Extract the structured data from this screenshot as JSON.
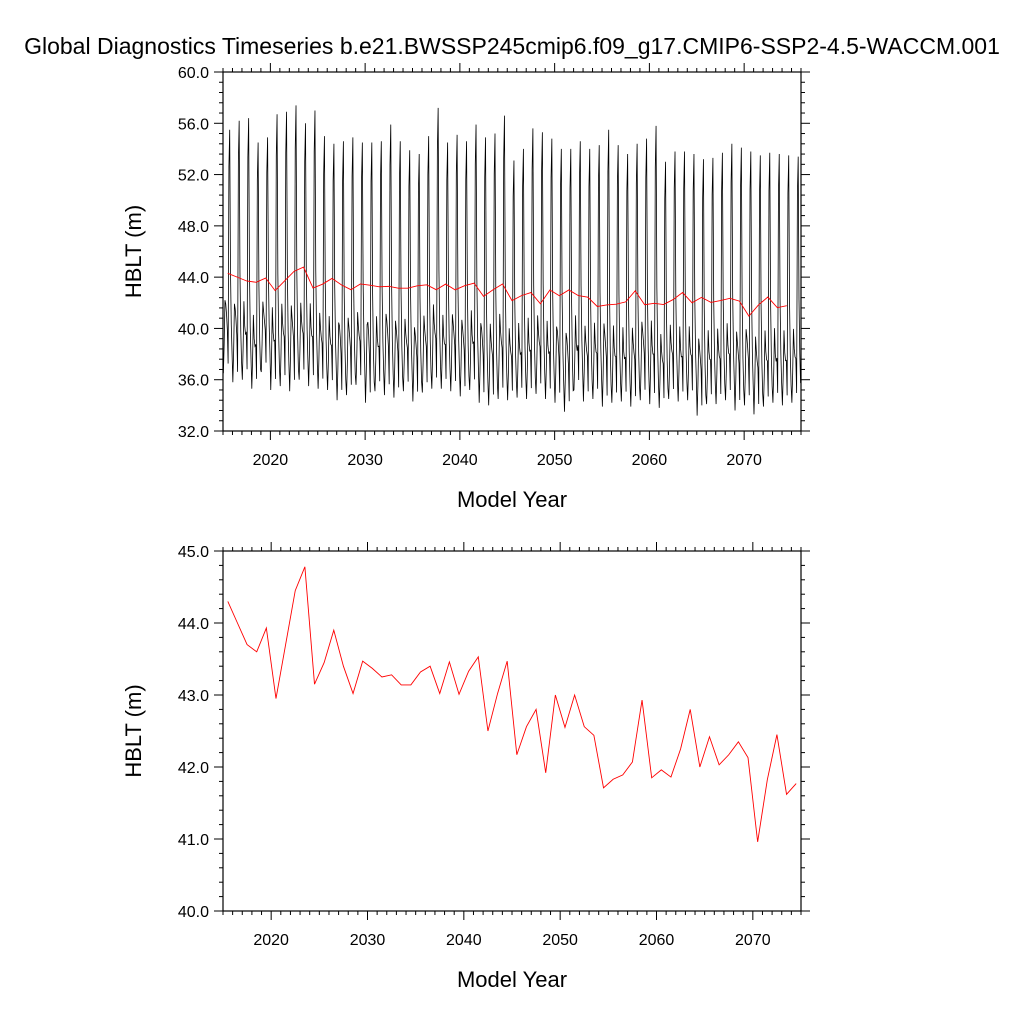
{
  "title": "Global Diagnostics Timeseries b.e21.BWSSP245cmip6.f09_g17.CMIP6-SSP2-4.5-WACCM.001",
  "colors": {
    "monthly": "#000000",
    "annual": "#ff0000",
    "frame": "#000000"
  },
  "chart_data": [
    {
      "type": "line",
      "xlabel": "Model Year",
      "ylabel": "HBLT (m)",
      "xlim": [
        2015,
        2076
      ],
      "ylim": [
        32.0,
        60.0
      ],
      "xticks": [
        "2020",
        "2030",
        "2040",
        "2050",
        "2060",
        "2070"
      ],
      "yticks": [
        "32.0",
        "36.0",
        "40.0",
        "44.0",
        "48.0",
        "52.0",
        "56.0",
        "60.0"
      ],
      "series": [
        {
          "kind": "monthly",
          "color": "#000000",
          "start": 2015.04,
          "step": 0.08333,
          "annual_max": [
            55.5,
            56.2,
            56.4,
            54.5,
            54.9,
            56.7,
            56.9,
            57.4,
            56.0,
            57.0,
            55.0,
            54.4,
            54.6,
            54.9,
            54.5,
            54.5,
            54.6,
            55.9,
            54.6,
            53.9,
            53.6,
            55.0,
            57.2,
            54.5,
            55.1,
            54.6,
            55.9,
            54.9,
            55.2,
            56.6,
            53.1,
            54.0,
            55.6,
            55.3,
            54.8,
            54.0,
            54.0,
            54.6,
            54.0,
            54.3,
            55.5,
            54.3,
            53.6,
            54.4,
            54.8,
            55.8,
            53.0,
            53.8,
            53.8,
            53.6,
            53.2,
            53.3,
            53.7,
            54.4,
            54.1,
            53.8,
            53.5,
            53.7,
            53.6,
            53.5,
            53.4
          ],
          "annual_min": [
            36.5,
            35.8,
            36.0,
            35.3,
            36.6,
            35.2,
            35.5,
            35.1,
            36.0,
            35.5,
            35.3,
            35.2,
            34.4,
            34.8,
            35.6,
            34.2,
            35.1,
            34.8,
            34.6,
            35.1,
            34.3,
            35.0,
            35.3,
            35.3,
            35.1,
            34.7,
            35.2,
            34.2,
            34.0,
            34.5,
            34.4,
            34.6,
            34.5,
            34.9,
            34.5,
            34.2,
            33.5,
            35.2,
            34.3,
            34.5,
            33.9,
            34.2,
            34.3,
            33.9,
            34.4,
            34.1,
            33.8,
            34.5,
            34.3,
            34.4,
            33.2,
            34.1,
            34.1,
            34.4,
            33.6,
            34.0,
            33.3,
            33.9,
            34.2,
            34.0,
            34.2
          ],
          "annual_secondary_peak": [
            41.9,
            41.5,
            40.2,
            39.2,
            41.3,
            39.7,
            40.4,
            40.8,
            40.6,
            40.1,
            40.0,
            39.4,
            40.2,
            40.1,
            40.1,
            40.5,
            39.2,
            40.6,
            39.9,
            39.6,
            39.5,
            39.9,
            40.4,
            39.4,
            40.4,
            40.0,
            39.5,
            40.0,
            39.1,
            39.8,
            38.8,
            38.6,
            38.9,
            39.7,
            38.7,
            39.8,
            39.2,
            38.8,
            39.0,
            38.8,
            39.6,
            38.5,
            38.2,
            38.9,
            39.8,
            38.7,
            38.2,
            38.9,
            38.4,
            38.6,
            38.5,
            38.2,
            38.5,
            38.7,
            38.9,
            39.3,
            38.2,
            38.2,
            38.0,
            38.1,
            38.4
          ]
        },
        {
          "kind": "annual",
          "color": "#ff0000",
          "x": [
            2015.5,
            2016.5,
            2017.5,
            2018.5,
            2019.5,
            2020.5,
            2021.5,
            2022.5,
            2023.5,
            2024.5,
            2025.5,
            2026.5,
            2027.5,
            2028.5,
            2029.5,
            2030.5,
            2031.5,
            2032.5,
            2033.5,
            2034.5,
            2035.5,
            2036.5,
            2037.5,
            2038.5,
            2039.5,
            2040.5,
            2041.5,
            2042.5,
            2043.5,
            2044.5,
            2045.5,
            2046.5,
            2047.5,
            2048.5,
            2049.5,
            2050.5,
            2051.5,
            2052.5,
            2053.5,
            2054.5,
            2055.5,
            2056.5,
            2057.5,
            2058.5,
            2059.5,
            2060.5,
            2061.5,
            2062.5,
            2063.5,
            2064.5,
            2065.5,
            2066.5,
            2067.5,
            2068.5,
            2069.5,
            2070.5,
            2071.5,
            2072.5,
            2073.5,
            2074.5
          ],
          "y": [
            44.3,
            44.0,
            43.7,
            43.6,
            43.93,
            42.95,
            43.7,
            44.45,
            44.78,
            43.15,
            43.45,
            43.9,
            43.4,
            43.02,
            43.47,
            43.37,
            43.25,
            43.28,
            43.14,
            43.14,
            43.32,
            43.4,
            43.02,
            43.46,
            43.01,
            43.33,
            43.53,
            42.5,
            43.02,
            43.47,
            42.17,
            42.56,
            42.8,
            41.92,
            43.0,
            42.55,
            43.0,
            42.56,
            42.44,
            41.71,
            41.83,
            41.89,
            42.07,
            42.93,
            41.85,
            41.96,
            41.86,
            42.25,
            42.8,
            42.0,
            42.42,
            42.03,
            42.17,
            42.35,
            42.13,
            40.96,
            41.82,
            42.45,
            41.62,
            41.77
          ]
        }
      ]
    },
    {
      "type": "line",
      "xlabel": "Model Year",
      "ylabel": "HBLT (m)",
      "xlim": [
        2015,
        2075
      ],
      "ylim": [
        40.0,
        45.0
      ],
      "xticks": [
        "2020",
        "2030",
        "2040",
        "2050",
        "2060",
        "2070"
      ],
      "yticks": [
        "40.0",
        "41.0",
        "42.0",
        "43.0",
        "44.0",
        "45.0"
      ],
      "series": [
        {
          "kind": "annual",
          "color": "#ff0000",
          "x": [
            2015.5,
            2016.5,
            2017.5,
            2018.5,
            2019.5,
            2020.5,
            2021.5,
            2022.5,
            2023.5,
            2024.5,
            2025.5,
            2026.5,
            2027.5,
            2028.5,
            2029.5,
            2030.5,
            2031.5,
            2032.5,
            2033.5,
            2034.5,
            2035.5,
            2036.5,
            2037.5,
            2038.5,
            2039.5,
            2040.5,
            2041.5,
            2042.5,
            2043.5,
            2044.5,
            2045.5,
            2046.5,
            2047.5,
            2048.5,
            2049.5,
            2050.5,
            2051.5,
            2052.5,
            2053.5,
            2054.5,
            2055.5,
            2056.5,
            2057.5,
            2058.5,
            2059.5,
            2060.5,
            2061.5,
            2062.5,
            2063.5,
            2064.5,
            2065.5,
            2066.5,
            2067.5,
            2068.5,
            2069.5,
            2070.5,
            2071.5,
            2072.5,
            2073.5,
            2074.5
          ],
          "y": [
            44.3,
            44.0,
            43.7,
            43.6,
            43.93,
            42.95,
            43.7,
            44.45,
            44.78,
            43.15,
            43.45,
            43.9,
            43.4,
            43.02,
            43.47,
            43.37,
            43.25,
            43.28,
            43.14,
            43.14,
            43.32,
            43.4,
            43.02,
            43.46,
            43.01,
            43.33,
            43.53,
            42.5,
            43.02,
            43.47,
            42.17,
            42.56,
            42.8,
            41.92,
            43.0,
            42.55,
            43.0,
            42.56,
            42.44,
            41.71,
            41.83,
            41.89,
            42.07,
            42.93,
            41.85,
            41.96,
            41.86,
            42.25,
            42.8,
            42.0,
            42.42,
            42.03,
            42.17,
            42.35,
            42.13,
            40.96,
            41.82,
            42.45,
            41.62,
            41.77
          ]
        }
      ]
    }
  ]
}
